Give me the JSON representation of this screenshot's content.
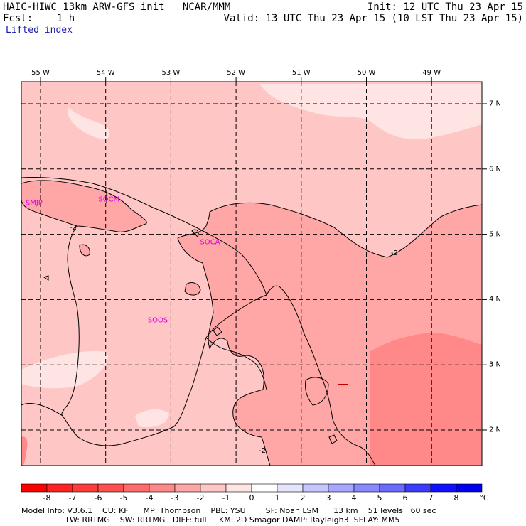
{
  "header": {
    "model_title": "HAIC-HIWC 13km ARW-GFS init   NCAR/MMM",
    "forecast": "Fcst:    1 h",
    "field_name": "Lifted index",
    "init_time": "Init: 12 UTC Thu 23 Apr 15",
    "valid_time": "Valid: 13 UTC Thu 23 Apr 15 (10 LST Thu 23 Apr 15)"
  },
  "map": {
    "lon_labels": [
      "55 W",
      "54 W",
      "53 W",
      "52 W",
      "51 W",
      "50 W",
      "49 W"
    ],
    "lat_labels": [
      "7 N",
      "6 N",
      "5 N",
      "4 N",
      "3 N",
      "2 N"
    ],
    "stations": [
      {
        "id": "SMJP",
        "lon": -55.1,
        "lat": 5.45
      },
      {
        "id": "SOCM",
        "lon": -53.95,
        "lat": 5.5
      },
      {
        "id": "SOCA",
        "lon": -52.4,
        "lat": 4.85
      },
      {
        "id": "SOOS",
        "lon": -53.2,
        "lat": 3.65
      }
    ],
    "contour_labels": [
      "-2",
      "-2",
      "-2"
    ]
  },
  "colorbar": {
    "labels": [
      "-8",
      "-7",
      "-6",
      "-5",
      "-4",
      "-3",
      "-2",
      "-1",
      "0",
      "1",
      "2",
      "3",
      "4",
      "5",
      "6",
      "7",
      "8"
    ],
    "unit": "°C",
    "colors": [
      "#ff0000",
      "#ff2424",
      "#ff3c3c",
      "#ff5050",
      "#ff6a6a",
      "#ff8888",
      "#ffa7a7",
      "#ffc6c6",
      "#ffe4e4",
      "#ffffff",
      "#e4e4ff",
      "#c6c6ff",
      "#a7a7ff",
      "#8888ff",
      "#6a6aff",
      "#3c3cff",
      "#1010ff",
      "#0000ee"
    ]
  },
  "footer": {
    "line1": "Model Info: V3.6.1    CU: KF      MP: Thompson    PBL: YSU        SF: Noah LSM      13 km    51 levels   60 sec",
    "line2": "                  LW: RRTMG    SW: RRTMG   DIFF: full     KM: 2D Smagor DAMP: Rayleigh3  SFLAY: MM5"
  }
}
